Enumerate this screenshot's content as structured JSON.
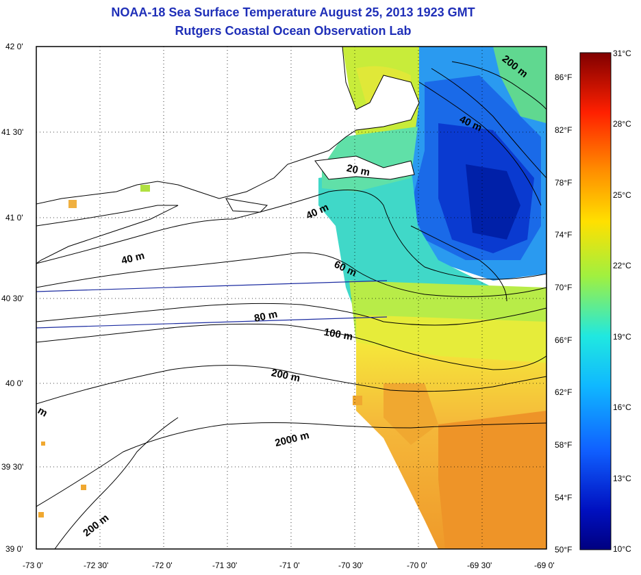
{
  "header": {
    "title": "NOAA-18 Sea Surface Temperature August 25, 2013 1923 GMT",
    "subtitle": "Rutgers Coastal Ocean Observation Lab"
  },
  "axes": {
    "latitude_labels": [
      "42 0'",
      "41 30'",
      "41 0'",
      "40 30'",
      "40 0'",
      "39 30'",
      "39 0'"
    ],
    "longitude_labels": [
      "-73 0'",
      "-72 30'",
      "-72 0'",
      "-71 30'",
      "-71 0'",
      "-70 30'",
      "-70 0'",
      "-69 30'",
      "-69 0'"
    ],
    "fahrenheit_labels": [
      "86°F",
      "82°F",
      "78°F",
      "74°F",
      "70°F",
      "66°F",
      "62°F",
      "58°F",
      "54°F",
      "50°F"
    ]
  },
  "colorbar": {
    "celsius_labels": [
      "31°C",
      "28°C",
      "25°C",
      "22°C",
      "19°C",
      "16°C",
      "13°C",
      "10°C"
    ],
    "colors": [
      "#800000",
      "#ff2000",
      "#ff9000",
      "#ffe000",
      "#a0f040",
      "#20e8e0",
      "#1080ff",
      "#0010c0",
      "#000080"
    ]
  },
  "contour_labels": [
    "200 m",
    "40 m",
    "20 m",
    "40 m",
    "40 m",
    "60 m",
    "80 m",
    "100 m",
    "200 m",
    "2000 m",
    "200 m",
    "m"
  ],
  "colors": {
    "title": "#1f2fb8",
    "land": "#ffffff",
    "coastline": "#000000",
    "transect": "#1a2aa0"
  }
}
